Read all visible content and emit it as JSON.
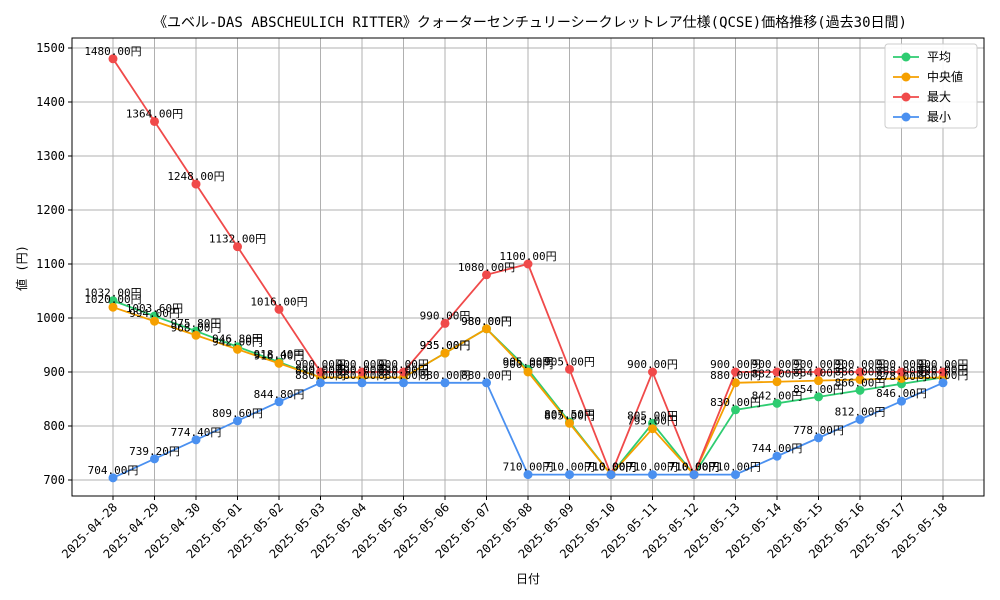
{
  "chart_data": {
    "type": "line",
    "title": "《ユベル-DAS ABSCHEULICH RITTER》クォーターセンチュリーシークレットレア仕様(QCSE)価格推移(過去30日間)",
    "xlabel": "日付",
    "ylabel": "値 (円)",
    "ylim": [
      700,
      1500
    ],
    "yticks": [
      700,
      800,
      900,
      1000,
      1100,
      1200,
      1300,
      1400,
      1500
    ],
    "grid": true,
    "legend_position": "top-right",
    "categories": [
      "2025-04-28",
      "2025-04-29",
      "2025-04-30",
      "2025-05-01",
      "2025-05-02",
      "2025-05-03",
      "2025-05-04",
      "2025-05-05",
      "2025-05-06",
      "2025-05-07",
      "2025-05-08",
      "2025-05-09",
      "2025-05-10",
      "2025-05-11",
      "2025-05-12",
      "2025-05-13",
      "2025-05-14",
      "2025-05-15",
      "2025-05-16",
      "2025-05-17",
      "2025-05-18"
    ],
    "series": [
      {
        "name": "平均",
        "color": "#2ecc71",
        "values": [
          1032.0,
          1003.6,
          975.8,
          946.8,
          918.4,
          890.0,
          890.0,
          890.0,
          935.0,
          980.0,
          905.0,
          807.5,
          710.0,
          805.0,
          710.0,
          830.0,
          842.0,
          854.0,
          866.0,
          878.0,
          890.0
        ]
      },
      {
        "name": "中央値",
        "color": "#f5a000",
        "values": [
          1020.0,
          994.0,
          968.0,
          942.0,
          916.0,
          890.0,
          890.0,
          890.0,
          935.0,
          980.0,
          900.0,
          805.0,
          710.0,
          795.0,
          710.0,
          880.0,
          882.0,
          884.0,
          886.0,
          888.0,
          890.0
        ]
      },
      {
        "name": "最大",
        "color": "#f04a4a",
        "values": [
          1480.0,
          1364.0,
          1248.0,
          1132.0,
          1016.0,
          900.0,
          900.0,
          900.0,
          990.0,
          1080.0,
          1100.0,
          905.0,
          710.0,
          900.0,
          710.0,
          900.0,
          900.0,
          900.0,
          900.0,
          900.0,
          900.0
        ]
      },
      {
        "name": "最小",
        "color": "#4a90f0",
        "values": [
          704.0,
          739.2,
          774.4,
          809.6,
          844.8,
          880.0,
          880.0,
          880.0,
          880.0,
          880.0,
          710.0,
          710.0,
          710.0,
          710.0,
          710.0,
          710.0,
          744.0,
          778.0,
          812.0,
          846.0,
          880.0
        ]
      }
    ]
  }
}
